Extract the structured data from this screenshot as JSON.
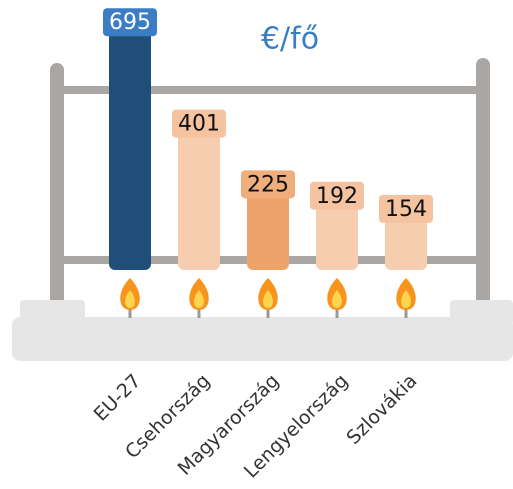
{
  "chart_data": {
    "type": "bar",
    "unit": "€/fő",
    "categories": [
      "EU-27",
      "Csehország",
      "Magyarország",
      "Lengyelország",
      "Szlovákia"
    ],
    "values": [
      695,
      401,
      225,
      192,
      154
    ],
    "colors": [
      "#1f4e79",
      "#f7cdb0",
      "#eea36a",
      "#f7cdb0",
      "#f7cdb0"
    ],
    "label_colors": [
      "#3b7dc4",
      "#f5c3a0",
      "#efae7c",
      "#f5c3a0",
      "#f5c3a0"
    ]
  }
}
